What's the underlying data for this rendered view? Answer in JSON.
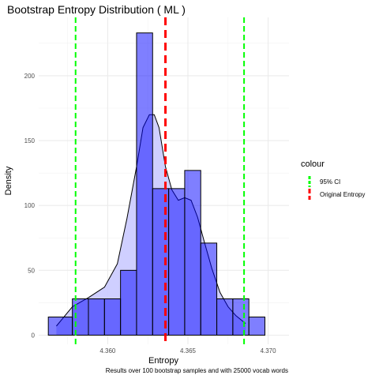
{
  "chart_data": {
    "type": "bar",
    "title": "Bootstrap Entropy Distribution ( ML )",
    "xlabel": "Entropy",
    "ylabel": "Density",
    "caption": "Results over 100 bootstrap samples and with 25000 vocab words",
    "xlim": [
      4.3557,
      4.3713
    ],
    "ylim": [
      -7,
      245
    ],
    "x_ticks": [
      4.36,
      4.365,
      4.37
    ],
    "x_tick_labels": [
      "4.360",
      "4.365",
      "4.370"
    ],
    "y_ticks": [
      0,
      50,
      100,
      150,
      200
    ],
    "y_tick_labels": [
      "0",
      "50",
      "100",
      "150",
      "200"
    ],
    "grid": true,
    "histogram": {
      "fill": "#0000ff",
      "bin_edges": [
        4.3563,
        4.3578,
        4.3588,
        4.3598,
        4.3608,
        4.3618,
        4.3628,
        4.3638,
        4.3648,
        4.3658,
        4.3668,
        4.3678,
        4.3688,
        4.3698
      ],
      "values": [
        14,
        28,
        28,
        28,
        50,
        233,
        113,
        113,
        127,
        71,
        28,
        28,
        14
      ]
    },
    "density": {
      "fill": "#ccccff",
      "x": [
        4.3568,
        4.3578,
        4.3588,
        4.3598,
        4.3606,
        4.3612,
        4.3618,
        4.3622,
        4.3626,
        4.3629,
        4.3632,
        4.3636,
        4.364,
        4.3644,
        4.3648,
        4.3652,
        4.3656,
        4.366,
        4.3665,
        4.367,
        4.3675,
        4.368,
        4.3686
      ],
      "y": [
        7,
        22,
        29,
        37,
        55,
        90,
        130,
        160,
        170,
        170,
        160,
        130,
        112,
        104,
        106,
        104,
        91,
        73,
        51,
        33,
        22,
        15,
        9
      ]
    },
    "vlines": [
      {
        "name": "95% CI",
        "x": 4.358,
        "color": "#00ff00"
      },
      {
        "name": "95% CI",
        "x": 4.3685,
        "color": "#00ff00"
      },
      {
        "name": "Original Entropy",
        "x": 4.3636,
        "color": "#ff0000"
      }
    ],
    "legend": {
      "title": "colour",
      "position": "right",
      "entries": [
        {
          "label": "95% CI",
          "color": "#00ff00"
        },
        {
          "label": "Original Entropy",
          "color": "#ff0000"
        }
      ]
    }
  }
}
